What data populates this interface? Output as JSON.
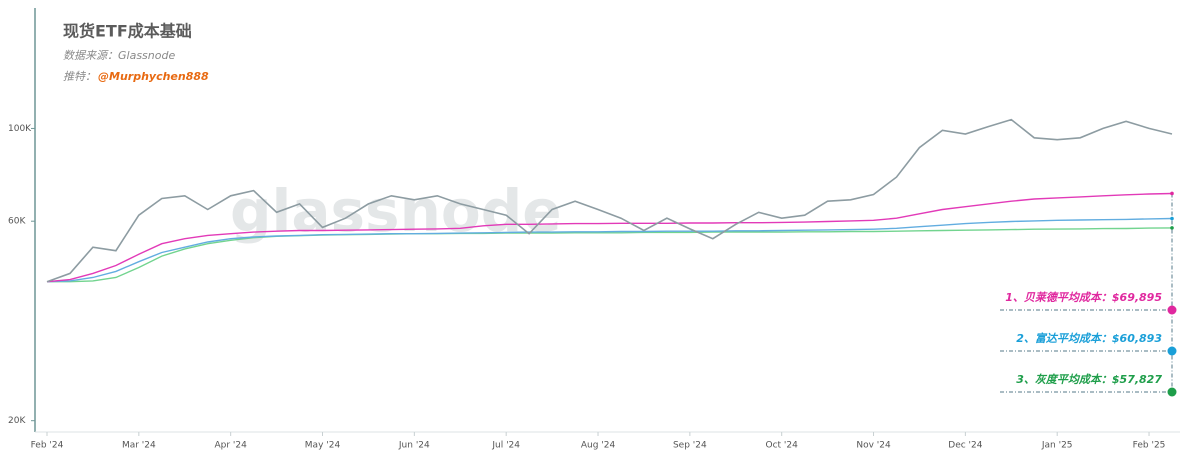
{
  "chart_data": {
    "type": "line",
    "title": "现货ETF成本基础",
    "subtitle": "数据来源：Glassnode",
    "credit_label": "推特：",
    "credit_handle": "@Murphychen888",
    "watermark": "glassnode",
    "yscale": "log",
    "ylim": [
      19000,
      192000
    ],
    "yticks": [
      {
        "value": 20000,
        "label": "20K"
      },
      {
        "value": 60000,
        "label": "60K"
      },
      {
        "value": 100000,
        "label": "100K"
      }
    ],
    "categories": [
      "Feb '24",
      null,
      null,
      null,
      "Mar '24",
      null,
      null,
      null,
      "Apr '24",
      null,
      null,
      null,
      "May '24",
      null,
      null,
      null,
      "Jun '24",
      null,
      null,
      null,
      "Jul '24",
      null,
      null,
      null,
      "Aug '24",
      null,
      null,
      null,
      "Sep '24",
      null,
      null,
      null,
      "Oct '24",
      null,
      null,
      null,
      "Nov '24",
      null,
      null,
      null,
      "Dec '24",
      null,
      null,
      null,
      "Jan '25",
      null,
      null,
      null,
      "Feb '25",
      null
    ],
    "series": [
      {
        "color": "#8d9ca2",
        "values": [
          43000,
          45000,
          52000,
          51000,
          62000,
          68000,
          69000,
          64000,
          69000,
          71000,
          63000,
          66000,
          58000,
          61000,
          66000,
          69000,
          67500,
          69000,
          66000,
          64000,
          62000,
          56000,
          64000,
          67000,
          64000,
          61000,
          57000,
          61000,
          57500,
          54500,
          59000,
          63000,
          61000,
          62000,
          67000,
          67500,
          69500,
          76500,
          90000,
          99000,
          97000,
          101000,
          105000,
          95000,
          94000,
          95000,
          100000,
          104000,
          100000,
          97000
        ]
      },
      {
        "color": "#e23ab8",
        "values": [
          43000,
          43500,
          45000,
          47000,
          50000,
          53000,
          54500,
          55500,
          56000,
          56500,
          56800,
          57000,
          57000,
          57100,
          57200,
          57300,
          57400,
          57500,
          57700,
          58500,
          59000,
          59000,
          59100,
          59200,
          59200,
          59300,
          59300,
          59300,
          59400,
          59400,
          59500,
          59500,
          59600,
          59700,
          59900,
          60100,
          60300,
          61000,
          62500,
          64000,
          65000,
          66000,
          67000,
          67800,
          68200,
          68600,
          69000,
          69400,
          69700,
          69895
        ]
      },
      {
        "color": "#62ade0",
        "values": [
          43000,
          43200,
          44000,
          45500,
          48000,
          50500,
          52000,
          53500,
          54500,
          55000,
          55300,
          55500,
          55700,
          55800,
          55900,
          56000,
          56000,
          56100,
          56200,
          56300,
          56400,
          56500,
          56500,
          56600,
          56600,
          56700,
          56700,
          56800,
          56800,
          56800,
          56900,
          56900,
          57000,
          57100,
          57200,
          57300,
          57400,
          57700,
          58200,
          58700,
          59200,
          59600,
          59900,
          60100,
          60300,
          60400,
          60500,
          60600,
          60750,
          60893
        ]
      },
      {
        "color": "#72d48f",
        "values": [
          43000,
          43000,
          43200,
          44000,
          46500,
          49500,
          51500,
          53000,
          54000,
          54800,
          55200,
          55400,
          55600,
          55700,
          55800,
          55900,
          56000,
          56000,
          56100,
          56100,
          56200,
          56200,
          56200,
          56300,
          56300,
          56300,
          56400,
          56400,
          56400,
          56500,
          56500,
          56500,
          56500,
          56600,
          56600,
          56700,
          56700,
          56800,
          56900,
          57000,
          57100,
          57200,
          57300,
          57400,
          57450,
          57500,
          57600,
          57650,
          57750,
          57827
        ]
      }
    ],
    "annotations": [
      {
        "text": "1、贝莱德平均成本：",
        "value": 69895,
        "value_label": "$69,895",
        "color": "#e0289f"
      },
      {
        "text": "2、富达平均成本：",
        "value": 60893,
        "value_label": "$60,893",
        "color": "#1a9fd8"
      },
      {
        "text": "3、灰度平均成本：",
        "value": 57827,
        "value_label": "$57,827",
        "color": "#1e9e4a"
      }
    ]
  }
}
